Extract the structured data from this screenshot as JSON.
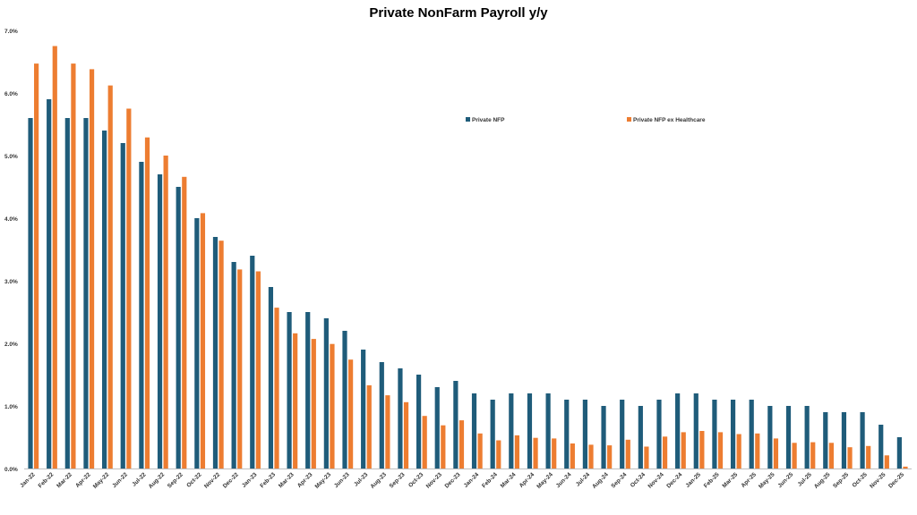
{
  "chart_data": {
    "type": "bar",
    "title": "Private NonFarm Payroll y/y",
    "xlabel": "",
    "ylabel": "",
    "ylim": [
      0,
      7
    ],
    "y_ticks": [
      "0.0%",
      "1.0%",
      "2.0%",
      "3.0%",
      "4.0%",
      "5.0%",
      "6.0%",
      "7.0%"
    ],
    "grid": false,
    "legend_position": "top-right",
    "categories": [
      "Jan-22",
      "Feb-22",
      "Mar-22",
      "Apr-22",
      "May-22",
      "Jun-22",
      "Jul-22",
      "Aug-22",
      "Sep-22",
      "Oct-22",
      "Nov-22",
      "Dec-22",
      "Jan-23",
      "Feb-23",
      "Mar-23",
      "Apr-23",
      "May-23",
      "Jun-23",
      "Jul-23",
      "Aug-23",
      "Sep-23",
      "Oct-23",
      "Nov-23",
      "Dec-23",
      "Jan-24",
      "Feb-24",
      "Mar-24",
      "Apr-24",
      "May-24",
      "Jun-24",
      "Jul-24",
      "Aug-24",
      "Sep-24",
      "Oct-24",
      "Nov-24",
      "Dec-24",
      "Jan-25",
      "Feb-25",
      "Mar-25",
      "Apr-25",
      "May-25",
      "Jun-25",
      "Jul-25",
      "Aug-25",
      "Sep-25",
      "Oct-25",
      "Nov-25",
      "Dec-25"
    ],
    "series": [
      {
        "name": "Private NFP",
        "color": "#1f5c7a",
        "values": [
          5.6,
          5.9,
          5.6,
          5.6,
          5.4,
          5.2,
          4.9,
          4.7,
          4.5,
          4.0,
          3.7,
          3.3,
          3.4,
          2.9,
          2.5,
          2.5,
          2.4,
          2.2,
          1.9,
          1.7,
          1.6,
          1.5,
          1.3,
          1.4,
          1.2,
          1.1,
          1.2,
          1.2,
          1.2,
          1.1,
          1.1,
          1.0,
          1.1,
          1.0,
          1.1,
          1.2,
          1.2,
          1.1,
          1.1,
          1.1,
          1.0,
          1.0,
          1.0,
          0.9,
          0.9,
          0.9,
          0.7,
          0.5
        ]
      },
      {
        "name": "Private NFP ex Healthcare",
        "color": "#ed7d31",
        "values": [
          6.47,
          6.75,
          6.47,
          6.38,
          6.12,
          5.75,
          5.29,
          5.0,
          4.66,
          4.08,
          3.64,
          3.18,
          3.15,
          2.57,
          2.16,
          2.07,
          1.99,
          1.74,
          1.33,
          1.17,
          1.06,
          0.84,
          0.69,
          0.77,
          0.56,
          0.45,
          0.53,
          0.49,
          0.48,
          0.4,
          0.38,
          0.37,
          0.46,
          0.35,
          0.51,
          0.58,
          0.6,
          0.58,
          0.55,
          0.56,
          0.48,
          0.41,
          0.42,
          0.41,
          0.34,
          0.36,
          0.21,
          0.03
        ]
      }
    ]
  }
}
